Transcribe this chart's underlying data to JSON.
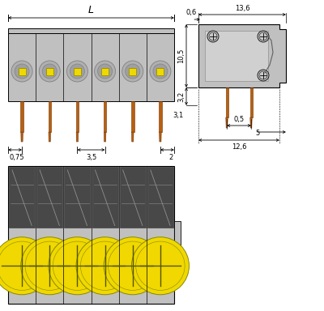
{
  "bg_color": "#ffffff",
  "gray_color": "#c0c0c0",
  "dark_gray": "#808080",
  "line_color": "#000000",
  "yellow_color": "#f0d800",
  "orange_color": "#b86010",
  "num_poles": 6,
  "fig_width": 4.0,
  "fig_height": 3.84,
  "dpi": 100,
  "annotations": {
    "L": "L",
    "dim_06": "0,6",
    "dim_136": "13,6",
    "dim_105": "10,5",
    "dim_32": "3,2",
    "dim_05": "0,5",
    "dim_31": "3,1",
    "dim_5": "5",
    "dim_126": "12,6",
    "dim_075": "0,75",
    "dim_35": "3,5",
    "dim_2": "2"
  }
}
